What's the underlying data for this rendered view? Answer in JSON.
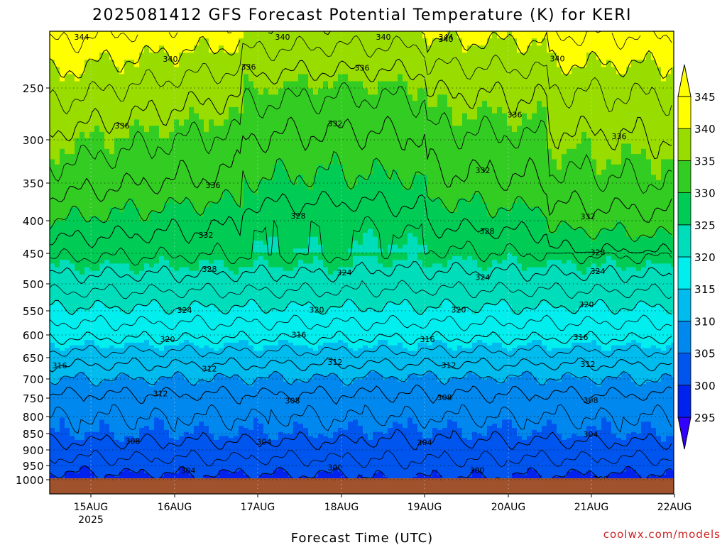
{
  "title": "2025081412 GFS Forecast Potential Temperature (K) for KERI",
  "credit": "coolwx.com/models",
  "chart_data": {
    "type": "heatmap",
    "title": "2025081412 GFS Forecast Potential Temperature (K) for KERI",
    "xlabel": "Forecast Time (UTC)",
    "ylabel": "",
    "x_ticks": [
      "15AUG",
      "16AUG",
      "17AUG",
      "18AUG",
      "19AUG",
      "20AUG",
      "21AUG",
      "22AUG"
    ],
    "x_year": "2025",
    "y_ticks": [
      250,
      300,
      350,
      400,
      450,
      500,
      550,
      600,
      650,
      700,
      750,
      800,
      850,
      900,
      950,
      1000
    ],
    "colorbar_ticks": [
      295,
      300,
      305,
      310,
      315,
      320,
      325,
      330,
      335,
      340,
      345
    ],
    "colorbar_colors": [
      "#3300ff",
      "#0022ee",
      "#0055ee",
      "#0088ee",
      "#00bbee",
      "#00eeee",
      "#00ddbb",
      "#00cc55",
      "#33cc22",
      "#99dd00",
      "#ffff00"
    ],
    "contour_interval": 4,
    "profile_levels": [
      1000,
      950,
      900,
      850,
      800,
      750,
      700,
      650,
      600,
      550,
      500,
      450,
      400,
      350,
      300,
      250,
      200
    ],
    "profile_theta": [
      299,
      301,
      303,
      305,
      306,
      307.5,
      310,
      313,
      316.5,
      319.5,
      323,
      326.5,
      330,
      333,
      335.5,
      339,
      343
    ],
    "profile_theta_end": [
      299,
      301,
      303,
      305,
      306,
      307.5,
      310,
      313,
      316.5,
      319.5,
      323,
      326.5,
      330,
      332.5,
      334.5,
      337,
      341
    ],
    "profile_theta_mid": [
      300,
      301.5,
      303,
      304.5,
      306,
      307.5,
      309.5,
      313,
      316.5,
      319.5,
      322.5,
      325.5,
      328,
      331,
      333,
      336,
      341
    ],
    "contour_labels": [
      "344",
      "344",
      "340",
      "340",
      "340",
      "340",
      "340",
      "336",
      "336",
      "336",
      "336",
      "336",
      "336",
      "332",
      "332",
      "332",
      "332",
      "328",
      "328",
      "328",
      "328",
      "324",
      "324",
      "324",
      "324",
      "320",
      "320",
      "320",
      "320",
      "316",
      "316",
      "316",
      "316",
      "312",
      "312",
      "312",
      "312",
      "312",
      "308",
      "308",
      "308",
      "308",
      "304",
      "304",
      "304",
      "304",
      "300",
      "300",
      "300",
      "300"
    ]
  }
}
